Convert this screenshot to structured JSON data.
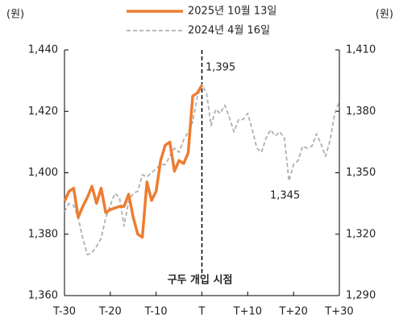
{
  "chart_data": {
    "type": "line",
    "ylabel": "(원)",
    "y2label": "(원)",
    "xlim": [
      -30,
      30
    ],
    "xticks": [
      {
        "value": -30,
        "label": "T-30"
      },
      {
        "value": -20,
        "label": "T-20"
      },
      {
        "value": -10,
        "label": "T-10"
      },
      {
        "value": 0,
        "label": "T"
      },
      {
        "value": 10,
        "label": "T+10"
      },
      {
        "value": 20,
        "label": "T+20"
      },
      {
        "value": 30,
        "label": "T+30"
      }
    ],
    "ylim": [
      1360,
      1440
    ],
    "yticks": [
      {
        "value": 1360,
        "label": "1,360"
      },
      {
        "value": 1380,
        "label": "1,380"
      },
      {
        "value": 1400,
        "label": "1,400"
      },
      {
        "value": 1420,
        "label": "1,420"
      },
      {
        "value": 1440,
        "label": "1,440"
      }
    ],
    "y2lim": [
      1290,
      1410
    ],
    "y2ticks": [
      {
        "value": 1290,
        "label": "1,290"
      },
      {
        "value": 1320,
        "label": "1,320"
      },
      {
        "value": 1350,
        "label": "1,350"
      },
      {
        "value": 1380,
        "label": "1,380"
      },
      {
        "value": 1410,
        "label": "1,410"
      }
    ],
    "annotations": [
      "1,395",
      "1,345",
      "구두 개입 시점"
    ],
    "series": [
      {
        "name": "2025년 10월 13일",
        "color": "#ed7d31",
        "dashed": false,
        "x": [
          -30,
          -29,
          -28,
          -27,
          -26,
          -25,
          -24,
          -23,
          -22,
          -21,
          -20,
          -19,
          -18,
          -17,
          -16,
          -15,
          -14,
          -13,
          -12,
          -11,
          -10,
          -9,
          -8,
          -7,
          -6,
          -5,
          -4,
          -3,
          -2,
          -1,
          0
        ],
        "values": [
          1390.7,
          1394,
          1395,
          1385.5,
          1389,
          1392,
          1395.6,
          1390,
          1395,
          1387,
          1388,
          1388.5,
          1389,
          1389,
          1393,
          1385.5,
          1380,
          1379,
          1397,
          1391,
          1394,
          1404,
          1409,
          1410,
          1400.5,
          1404,
          1403,
          1406.5,
          1425,
          1426,
          1428.5
        ]
      },
      {
        "name": "2024년 4월 16일",
        "color": "#b0b0b0",
        "dashed": true,
        "axis": "y2",
        "x": [
          -30,
          -29,
          -28,
          -27,
          -26,
          -25,
          -24,
          -23,
          -22,
          -21,
          -20,
          -19,
          -18,
          -17,
          -16,
          -15,
          -14,
          -13,
          -12,
          -11,
          -10,
          -9,
          -8,
          -7,
          -6,
          -5,
          -4,
          -3,
          -2,
          -1,
          0,
          1,
          2,
          3,
          4,
          5,
          6,
          7,
          8,
          9,
          10,
          11,
          12,
          13,
          14,
          15,
          16,
          17,
          18,
          19,
          20,
          21,
          22,
          23,
          24,
          25,
          26,
          27,
          28,
          29,
          30
        ],
        "values": [
          1331,
          1335,
          1334,
          1328,
          1318,
          1310,
          1311,
          1314,
          1318,
          1328,
          1334,
          1340,
          1338,
          1324,
          1336,
          1340,
          1341,
          1349,
          1348,
          1350,
          1352,
          1354,
          1354,
          1358,
          1362,
          1360,
          1366,
          1370,
          1375,
          1387,
          1393,
          1389,
          1373,
          1381,
          1379,
          1383,
          1377,
          1370,
          1376,
          1376,
          1379,
          1371,
          1362,
          1360,
          1367,
          1371,
          1368,
          1370,
          1367,
          1346,
          1354,
          1356,
          1363,
          1362,
          1363,
          1369,
          1364,
          1358,
          1366,
          1379,
          1385
        ]
      }
    ]
  }
}
